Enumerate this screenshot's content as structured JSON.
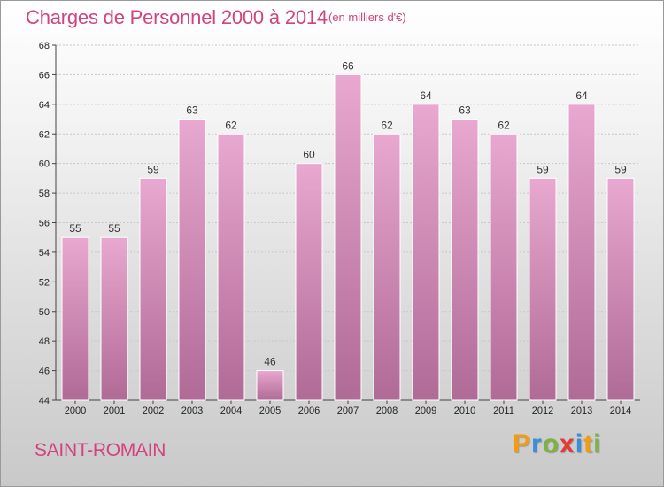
{
  "header": {
    "title": "Charges de Personnel 2000 à 2014",
    "subtitle": "(en milliers d'€)"
  },
  "footer": {
    "commune": "SAINT-ROMAIN",
    "logo": {
      "letters": [
        "P",
        "r",
        "o",
        "x",
        "i",
        "t",
        "i"
      ],
      "colors": [
        "#f39c12",
        "#3b8ed8",
        "#7cb342",
        "#e53935",
        "#3b8ed8",
        "#f39c12",
        "#7cb342"
      ]
    }
  },
  "chart_data": {
    "type": "bar",
    "title": "Charges de Personnel 2000 à 2014",
    "subtitle": "(en milliers d'€)",
    "categories": [
      "2000",
      "2001",
      "2002",
      "2003",
      "2004",
      "2005",
      "2006",
      "2007",
      "2008",
      "2009",
      "2010",
      "2011",
      "2012",
      "2013",
      "2014"
    ],
    "values": [
      55,
      55,
      59,
      63,
      62,
      46,
      60,
      66,
      62,
      64,
      63,
      62,
      59,
      64,
      59
    ],
    "ylim": [
      44,
      68
    ],
    "yticks": [
      44,
      46,
      48,
      50,
      52,
      54,
      56,
      58,
      60,
      62,
      64,
      66,
      68
    ],
    "grid": true,
    "bar_color_top": "#e8a8cf",
    "bar_color_bottom": "#b06a96"
  }
}
